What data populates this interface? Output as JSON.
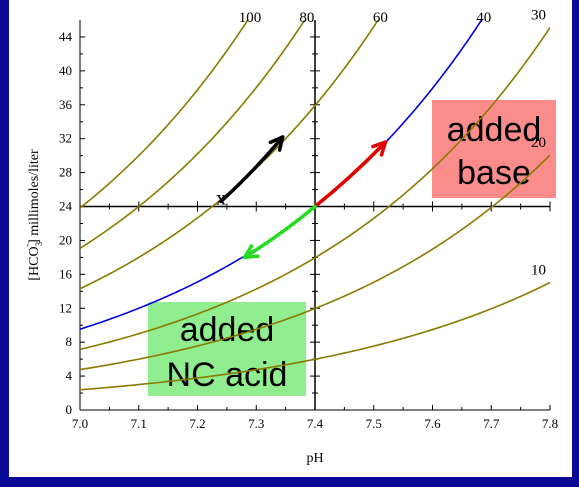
{
  "colors": {
    "frame": "#0a0a96",
    "plot_bg": "#ffffff",
    "isobar": "#8a7a00",
    "normal_pco2_line": "#0000e0",
    "arrow_metabolic_alkalosis": "#e00000",
    "arrow_metabolic_acidosis": "#22dd22",
    "arrow_other": "#000000",
    "base_box": "#fa8c8c",
    "acid_box": "#90ee90"
  },
  "chart_data": {
    "type": "line",
    "title": "",
    "xlabel": "pH",
    "ylabel": "[HCO3-] millimoles/liter",
    "ylabel_parts": {
      "pre": "[HCO",
      "sub": "3",
      "sup": "-",
      "post": "] millimoles/liter"
    },
    "xlim": [
      7.0,
      7.8
    ],
    "ylim": [
      0,
      46
    ],
    "x_ticks": [
      "7.0",
      "7.1",
      "7.2",
      "7.3",
      "7.4",
      "7.5",
      "7.6",
      "7.7",
      "7.8"
    ],
    "y_ticks": [
      "0",
      "4",
      "8",
      "12",
      "16",
      "20",
      "24",
      "28",
      "32",
      "36",
      "40",
      "44"
    ],
    "center_axes": {
      "x": 7.4,
      "y": 24
    },
    "series": [
      {
        "name": "100",
        "pco2": 100,
        "highlight": false
      },
      {
        "name": "80",
        "pco2": 80,
        "highlight": false
      },
      {
        "name": "60",
        "pco2": 60,
        "highlight": false
      },
      {
        "name": "40",
        "pco2": 40,
        "highlight": true
      },
      {
        "name": "30",
        "pco2": 30,
        "highlight": false
      },
      {
        "name": "20",
        "pco2": 20,
        "highlight": false
      },
      {
        "name": "10",
        "pco2": 10,
        "highlight": false
      }
    ],
    "arrows": [
      {
        "id": "alkalosis",
        "from": [
          7.4,
          24
        ],
        "to": [
          7.52,
          31.6
        ],
        "color": "#e00000"
      },
      {
        "id": "acidosis",
        "from": [
          7.4,
          24
        ],
        "to": [
          7.28,
          18.0
        ],
        "color": "#22dd22"
      },
      {
        "id": "compensation",
        "from": [
          7.24,
          24.6
        ],
        "to": [
          7.345,
          32.2
        ],
        "color": "#000000"
      }
    ],
    "markers": [
      {
        "x": 7.24,
        "y": 24.6,
        "symbol": "x"
      }
    ]
  },
  "annotations": {
    "base_box": {
      "line1": "added",
      "line2": "base"
    },
    "acid_box": {
      "line1": "added",
      "line2": "NC acid"
    },
    "marker_symbol": "x"
  }
}
